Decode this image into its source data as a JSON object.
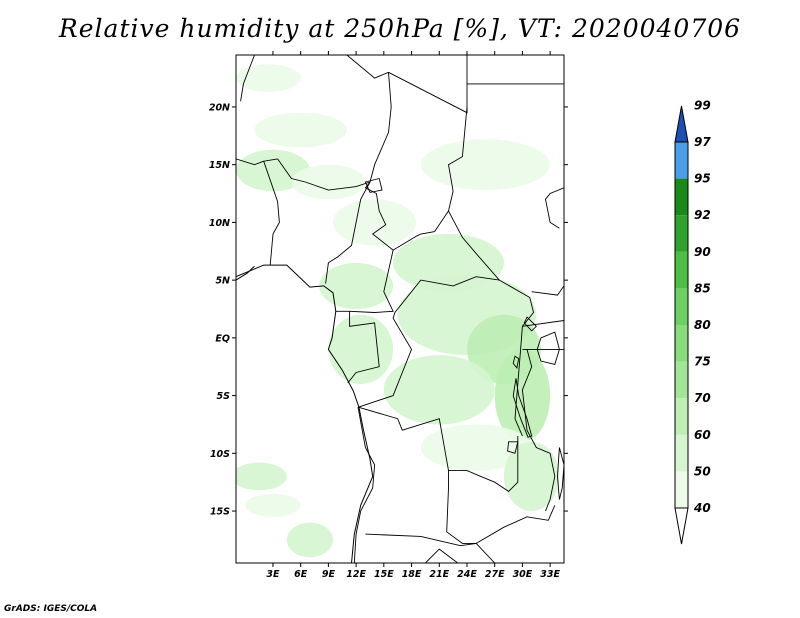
{
  "title": "Relative humidity at 250hPa [%], VT: 2020040706",
  "credit": "GrADS: IGES/COLA",
  "map": {
    "lon_range": [
      -1,
      34.5
    ],
    "lat_range": [
      -19.5,
      24.5
    ],
    "lon_ticks": [
      {
        "v": 3,
        "label": "3E"
      },
      {
        "v": 6,
        "label": "6E"
      },
      {
        "v": 9,
        "label": "9E"
      },
      {
        "v": 12,
        "label": "12E"
      },
      {
        "v": 15,
        "label": "15E"
      },
      {
        "v": 18,
        "label": "18E"
      },
      {
        "v": 21,
        "label": "21E"
      },
      {
        "v": 24,
        "label": "24E"
      },
      {
        "v": 27,
        "label": "27E"
      },
      {
        "v": 30,
        "label": "30E"
      },
      {
        "v": 33,
        "label": "33E"
      }
    ],
    "lat_ticks": [
      {
        "v": 20,
        "label": "20N"
      },
      {
        "v": 15,
        "label": "15N"
      },
      {
        "v": 10,
        "label": "10N"
      },
      {
        "v": 5,
        "label": "5N"
      },
      {
        "v": 0,
        "label": "EQ"
      },
      {
        "v": -5,
        "label": "5S"
      },
      {
        "v": -10,
        "label": "10S"
      },
      {
        "v": -15,
        "label": "15S"
      }
    ]
  },
  "colorbar": {
    "levels": [
      "40",
      "50",
      "60",
      "70",
      "75",
      "80",
      "85",
      "90",
      "92",
      "95",
      "97",
      "99"
    ],
    "colors": [
      "#ffffff",
      "#ebfbe8",
      "#d4f5ce",
      "#bdeeb4",
      "#a3e598",
      "#88dc7c",
      "#6cd160",
      "#4dbf45",
      "#2fa22c",
      "#198a1a",
      "#4a9ee8",
      "#2a70d8",
      "#1c4fb4"
    ]
  },
  "fields": [
    {
      "lon": 2.5,
      "lat": 22.5,
      "rx": 3.5,
      "ry": 1.2,
      "level": 1
    },
    {
      "lon": 6.0,
      "lat": 18.0,
      "rx": 5.0,
      "ry": 1.5,
      "level": 1
    },
    {
      "lon": 3.0,
      "lat": 14.5,
      "rx": 4.0,
      "ry": 1.8,
      "level": 2
    },
    {
      "lon": 9.0,
      "lat": 13.5,
      "rx": 4.0,
      "ry": 1.5,
      "level": 1
    },
    {
      "lon": 26.0,
      "lat": 15.0,
      "rx": 7.0,
      "ry": 2.2,
      "level": 1
    },
    {
      "lon": 14.0,
      "lat": 10.0,
      "rx": 4.5,
      "ry": 2.0,
      "level": 1
    },
    {
      "lon": 22.0,
      "lat": 6.5,
      "rx": 6.0,
      "ry": 2.5,
      "level": 2
    },
    {
      "lon": 12.0,
      "lat": 4.5,
      "rx": 4.0,
      "ry": 2.0,
      "level": 2
    },
    {
      "lon": 24.0,
      "lat": 2.0,
      "rx": 7.5,
      "ry": 3.5,
      "level": 2
    },
    {
      "lon": 28.0,
      "lat": -1.0,
      "rx": 4.0,
      "ry": 3.0,
      "level": 3
    },
    {
      "lon": 12.5,
      "lat": -1.0,
      "rx": 3.5,
      "ry": 3.0,
      "level": 2
    },
    {
      "lon": 21.0,
      "lat": -4.5,
      "rx": 6.0,
      "ry": 3.0,
      "level": 2
    },
    {
      "lon": 30.0,
      "lat": -5.0,
      "rx": 3.0,
      "ry": 4.0,
      "level": 3
    },
    {
      "lon": 25.0,
      "lat": -9.5,
      "rx": 6.0,
      "ry": 2.0,
      "level": 1
    },
    {
      "lon": 31.0,
      "lat": -12.0,
      "rx": 3.0,
      "ry": 3.0,
      "level": 2
    },
    {
      "lon": 1.5,
      "lat": -12.0,
      "rx": 3.0,
      "ry": 1.2,
      "level": 2
    },
    {
      "lon": 3.0,
      "lat": -14.5,
      "rx": 3.0,
      "ry": 1.0,
      "level": 1
    },
    {
      "lon": 7.0,
      "lat": -17.5,
      "rx": 2.5,
      "ry": 1.5,
      "level": 2
    }
  ],
  "borders": [
    [
      [
        11.0,
        24.5
      ],
      [
        14.0,
        22.5
      ],
      [
        15.5,
        23.0
      ]
    ],
    [
      [
        15.5,
        23.0
      ],
      [
        24.0,
        19.5
      ],
      [
        24.0,
        24.5
      ]
    ],
    [
      [
        24.0,
        19.5
      ],
      [
        24.0,
        20.0
      ],
      [
        23.5,
        15.7
      ],
      [
        22.0,
        15.0
      ],
      [
        22.5,
        12.7
      ],
      [
        22.0,
        11.0
      ],
      [
        23.5,
        8.7
      ],
      [
        25.0,
        7.3
      ],
      [
        27.5,
        5.0
      ]
    ],
    [
      [
        27.5,
        5.0
      ],
      [
        30.8,
        3.5
      ],
      [
        31.2,
        2.2
      ],
      [
        30.0,
        1.0
      ],
      [
        29.8,
        -1.0
      ]
    ],
    [
      [
        27.5,
        5.0
      ],
      [
        25.0,
        5.3
      ],
      [
        22.5,
        4.5
      ],
      [
        19.0,
        5.0
      ],
      [
        16.2,
        2.2
      ],
      [
        16.0,
        1.7
      ],
      [
        18.0,
        -1.0
      ],
      [
        17.0,
        -3.0
      ],
      [
        16.0,
        -5.0
      ],
      [
        13.0,
        -5.8
      ],
      [
        12.3,
        -6.0
      ]
    ],
    [
      [
        15.5,
        23.0
      ],
      [
        15.8,
        20.0
      ],
      [
        15.5,
        17.8
      ],
      [
        14.0,
        15.0
      ],
      [
        13.5,
        13.5
      ],
      [
        13.0,
        13.0
      ],
      [
        14.2,
        12.5
      ],
      [
        14.5,
        11.0
      ],
      [
        15.2,
        9.8
      ],
      [
        13.8,
        9.0
      ],
      [
        16.0,
        7.6
      ],
      [
        18.5,
        8.8
      ],
      [
        19.0,
        9.0
      ],
      [
        20.5,
        9.2
      ],
      [
        22.0,
        11.0
      ]
    ],
    [
      [
        3.5,
        15.5
      ],
      [
        2.0,
        15.3
      ],
      [
        3.5,
        11.8
      ],
      [
        3.7,
        10.0
      ],
      [
        3.0,
        9.0
      ],
      [
        2.7,
        6.3
      ]
    ],
    [
      [
        3.5,
        15.5
      ],
      [
        5.0,
        13.8
      ],
      [
        6.5,
        13.5
      ],
      [
        9.0,
        12.8
      ],
      [
        12.0,
        13.1
      ],
      [
        13.5,
        13.5
      ]
    ],
    [
      [
        13.5,
        13.5
      ],
      [
        12.5,
        12.0
      ],
      [
        11.5,
        8.0
      ],
      [
        10.0,
        7.0
      ],
      [
        9.0,
        6.5
      ],
      [
        8.7,
        4.7
      ]
    ],
    [
      [
        16.0,
        7.6
      ],
      [
        15.0,
        4.0
      ],
      [
        16.0,
        2.3
      ],
      [
        14.0,
        2.2
      ],
      [
        11.3,
        2.3
      ],
      [
        9.8,
        2.3
      ]
    ],
    [
      [
        11.3,
        2.3
      ],
      [
        11.3,
        1.0
      ],
      [
        14.0,
        1.3
      ],
      [
        14.5,
        -2.5
      ],
      [
        12.0,
        -3.0
      ],
      [
        11.1,
        -3.9
      ]
    ],
    [
      [
        12.2,
        -6.0
      ],
      [
        13.0,
        -9.5
      ],
      [
        14.0,
        -11.0
      ],
      [
        13.8,
        -13.0
      ],
      [
        12.5,
        -15.0
      ],
      [
        12.0,
        -17.0
      ],
      [
        11.8,
        -19.5
      ]
    ],
    [
      [
        12.2,
        -6.0
      ],
      [
        16.5,
        -7.0
      ],
      [
        17.0,
        -8.0
      ],
      [
        21.0,
        -7.0
      ],
      [
        22.0,
        -11.5
      ],
      [
        24.0,
        -11.5
      ],
      [
        25.5,
        -12.0
      ],
      [
        27.0,
        -12.5
      ],
      [
        28.5,
        -13.3
      ],
      [
        29.5,
        -12.5
      ],
      [
        29.5,
        -8.5
      ]
    ],
    [
      [
        22.0,
        -11.5
      ],
      [
        22.0,
        -13.0
      ],
      [
        21.8,
        -16.8
      ],
      [
        23.5,
        -17.8
      ],
      [
        25.0,
        -17.8
      ]
    ],
    [
      [
        25.0,
        -17.8
      ],
      [
        28.0,
        -16.4
      ],
      [
        30.5,
        -15.5
      ],
      [
        32.8,
        -15.8
      ],
      [
        33.5,
        -14.5
      ]
    ],
    [
      [
        13.0,
        -17.0
      ],
      [
        19.0,
        -17.2
      ],
      [
        23.3,
        -18.0
      ],
      [
        25.0,
        -17.8
      ]
    ],
    [
      [
        25.0,
        -17.8
      ],
      [
        27.0,
        -19.5
      ]
    ],
    [
      [
        19.5,
        -19.5
      ],
      [
        21.0,
        -18.3
      ],
      [
        23.0,
        -19.5
      ]
    ],
    [
      [
        30.5,
        -1.0
      ],
      [
        31.0,
        -2.5
      ],
      [
        30.0,
        -4.5
      ],
      [
        30.5,
        -8.0
      ],
      [
        31.5,
        -9.5
      ],
      [
        33.0,
        -10.0
      ],
      [
        33.5,
        -12.0
      ],
      [
        33.0,
        -14.0
      ],
      [
        32.5,
        -15.0
      ]
    ],
    [
      [
        29.8,
        -1.0
      ],
      [
        29.5,
        -4.0
      ],
      [
        29.2,
        -7.0
      ],
      [
        30.0,
        -8.5
      ]
    ],
    [
      [
        1.0,
        24.5
      ],
      [
        -0.2,
        22.0
      ],
      [
        -0.5,
        20.5
      ]
    ],
    [
      [
        -1.0,
        15.5
      ],
      [
        1.0,
        15.0
      ],
      [
        2.0,
        15.3
      ]
    ],
    [
      [
        30.0,
        1.0
      ],
      [
        34.5,
        1.5
      ]
    ],
    [
      [
        30.0,
        -1.0
      ],
      [
        34.5,
        -1.0
      ]
    ],
    [
      [
        31.0,
        4.0
      ],
      [
        33.8,
        3.7
      ],
      [
        34.5,
        4.5
      ]
    ],
    [
      [
        34.5,
        13.0
      ],
      [
        33.0,
        12.5
      ],
      [
        32.5,
        12.0
      ],
      [
        33.0,
        10.0
      ],
      [
        34.0,
        9.5
      ]
    ],
    [
      [
        24.0,
        22.0
      ],
      [
        34.5,
        22.0
      ]
    ]
  ],
  "coasts": [
    [
      [
        -1.0,
        5.3
      ],
      [
        2.0,
        6.3
      ],
      [
        4.5,
        6.3
      ],
      [
        7.0,
        4.4
      ],
      [
        8.5,
        4.5
      ],
      [
        9.5,
        3.9
      ],
      [
        9.8,
        2.3
      ],
      [
        9.4,
        0.0
      ],
      [
        9.0,
        -1.0
      ],
      [
        10.5,
        -2.8
      ],
      [
        11.7,
        -4.6
      ],
      [
        12.3,
        -6.0
      ],
      [
        12.8,
        -8.0
      ],
      [
        13.5,
        -10.5
      ],
      [
        13.8,
        -12.0
      ],
      [
        12.5,
        -14.5
      ],
      [
        11.8,
        -17.0
      ],
      [
        11.5,
        -19.5
      ]
    ],
    [
      [
        1.0,
        6.2
      ],
      [
        0.2,
        5.6
      ],
      [
        -1.0,
        5.0
      ]
    ]
  ],
  "lakes": [
    [
      [
        32.0,
        0.0
      ],
      [
        33.5,
        0.5
      ],
      [
        34.0,
        -1.0
      ],
      [
        33.5,
        -2.3
      ],
      [
        32.0,
        -2.0
      ],
      [
        31.6,
        -1.0
      ],
      [
        32.0,
        0.0
      ]
    ],
    [
      [
        29.3,
        -3.5
      ],
      [
        29.6,
        -5.0
      ],
      [
        30.5,
        -7.0
      ],
      [
        31.0,
        -8.5
      ],
      [
        30.6,
        -8.6
      ],
      [
        29.8,
        -7.0
      ],
      [
        29.0,
        -5.0
      ],
      [
        29.3,
        -3.5
      ]
    ],
    [
      [
        34.0,
        -9.5
      ],
      [
        34.5,
        -11.0
      ],
      [
        34.3,
        -13.0
      ],
      [
        34.0,
        -14.0
      ],
      [
        33.8,
        -12.0
      ],
      [
        34.0,
        -9.5
      ]
    ],
    [
      [
        28.5,
        -9.0
      ],
      [
        29.5,
        -9.0
      ],
      [
        29.2,
        -10.0
      ],
      [
        28.4,
        -9.8
      ],
      [
        28.5,
        -9.0
      ]
    ],
    [
      [
        30.5,
        1.8
      ],
      [
        31.5,
        1.0
      ],
      [
        31.0,
        0.6
      ],
      [
        30.2,
        1.3
      ],
      [
        30.5,
        1.8
      ]
    ],
    [
      [
        29.2,
        -1.6
      ],
      [
        29.6,
        -1.8
      ],
      [
        29.4,
        -2.6
      ],
      [
        29.0,
        -2.2
      ],
      [
        29.2,
        -1.6
      ]
    ],
    [
      [
        13.0,
        13.5
      ],
      [
        14.5,
        13.8
      ],
      [
        14.8,
        12.8
      ],
      [
        13.5,
        12.6
      ],
      [
        13.0,
        13.5
      ]
    ]
  ]
}
